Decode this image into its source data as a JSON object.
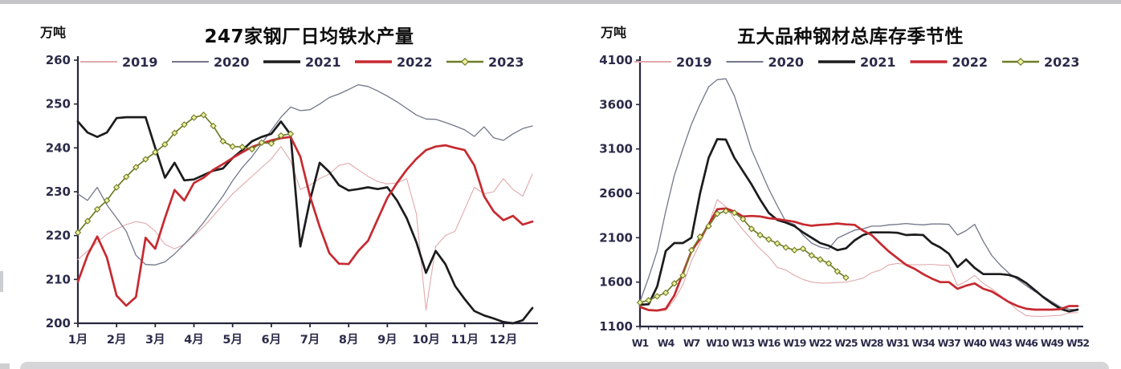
{
  "page": {
    "top_strip_color": "#c5c5c7",
    "bottom_bar_color": "#d6d6d9",
    "background": "#ffffff"
  },
  "chart_data": [
    {
      "type": "line",
      "title": "247家钢厂日均铁水产量",
      "unit": "万吨",
      "ylim": [
        200,
        260
      ],
      "y_ticks": [
        200,
        210,
        220,
        230,
        240,
        250,
        260
      ],
      "x_type": "month",
      "x_labels": [
        "1月",
        "2月",
        "3月",
        "4月",
        "5月",
        "6月",
        "7月",
        "8月",
        "9月",
        "10月",
        "11月",
        "12月"
      ],
      "weeks": 48,
      "grid": false,
      "legend_position": "top",
      "series": [
        {
          "name": "2019",
          "color": "#e2a9ad",
          "width": 1.1,
          "marker": false,
          "values": [
            214.5,
            216.5,
            218.5,
            220.3,
            221.5,
            222.5,
            223.2,
            222.8,
            221,
            218,
            217,
            218,
            220,
            222,
            224.5,
            227,
            229.5,
            231.5,
            233.5,
            235.5,
            237.5,
            240.3,
            237,
            230.5,
            231.5,
            233,
            234,
            236,
            236.5,
            235,
            233.5,
            232.3,
            231.8,
            232,
            233,
            225,
            203,
            217.5,
            220,
            221,
            226,
            231,
            229.5,
            230,
            233,
            230.5,
            229,
            234
          ]
        },
        {
          "name": "2020",
          "color": "#72778a",
          "width": 1.3,
          "marker": false,
          "values": [
            229.5,
            228,
            231,
            227,
            224,
            221,
            215.5,
            213.4,
            213.3,
            214,
            215.8,
            218,
            220.3,
            223,
            226,
            229,
            232.5,
            235.5,
            238,
            241,
            244,
            247,
            249.3,
            248.5,
            248.7,
            250,
            251.5,
            252.3,
            253.3,
            254.4,
            254,
            253,
            251.8,
            250.5,
            249,
            247.5,
            246.6,
            246.5,
            245.8,
            245,
            244.1,
            242.6,
            244.8,
            242.3,
            241.7,
            243.2,
            244.4,
            245
          ]
        },
        {
          "name": "2021",
          "color": "#1c1c1e",
          "width": 2.7,
          "marker": false,
          "values": [
            246,
            243.5,
            242.5,
            243.5,
            246.8,
            247,
            247,
            247,
            240,
            233.2,
            236.6,
            232.6,
            232.8,
            233.8,
            234.8,
            235.3,
            237.7,
            239.5,
            241.5,
            242.5,
            243.2,
            246,
            243,
            217.5,
            228,
            236.6,
            234.5,
            231.5,
            230.3,
            230.6,
            231,
            230.6,
            231,
            228,
            224,
            218.5,
            211.5,
            216.5,
            213.5,
            208.5,
            205.5,
            202.8,
            201.8,
            201.1,
            200.3,
            200,
            200.7,
            203.5
          ]
        },
        {
          "name": "2022",
          "color": "#c62a30",
          "width": 2.7,
          "marker": false,
          "values": [
            209.5,
            215.5,
            219.8,
            215,
            206.3,
            204,
            206,
            219.5,
            217,
            224,
            230.4,
            228,
            232,
            233.2,
            235,
            236.3,
            237.7,
            239,
            240.2,
            241,
            241.7,
            242.2,
            242.5,
            238,
            229,
            222,
            216,
            213.6,
            213.5,
            216.5,
            218.8,
            223.7,
            228.6,
            232,
            235,
            237.5,
            239.5,
            240.3,
            240.6,
            240,
            239.5,
            236,
            229,
            225.5,
            223.5,
            224.5,
            222.5,
            223.2
          ]
        },
        {
          "name": "2023",
          "color": "#6f7c26",
          "width": 1.7,
          "marker": true,
          "marker_fill": "#eff0a0",
          "values": [
            220.7,
            223.3,
            226,
            228,
            231,
            233.4,
            235.6,
            237.4,
            239,
            240.8,
            243.4,
            245.3,
            246.9,
            247.5,
            245,
            241.5,
            240.3,
            240.2,
            239.7,
            241.2,
            241,
            242.8,
            243.2
          ]
        }
      ]
    },
    {
      "type": "line",
      "title": "五大品种钢材总库存季节性",
      "unit": "万吨",
      "ylim": [
        1100,
        4100
      ],
      "y_ticks": [
        1100,
        1600,
        2100,
        2600,
        3100,
        3600,
        4100
      ],
      "x_type": "week",
      "x_labels": [
        "W1",
        "W4",
        "W7",
        "W10",
        "W13",
        "W16",
        "W19",
        "W22",
        "W25",
        "W28",
        "W31",
        "W34",
        "W37",
        "W40",
        "W43",
        "W46",
        "W49",
        "W52"
      ],
      "x_label_weeks": [
        1,
        4,
        7,
        10,
        13,
        16,
        19,
        22,
        25,
        28,
        31,
        34,
        37,
        40,
        43,
        46,
        49,
        52
      ],
      "weeks": 52,
      "grid": false,
      "legend_position": "top",
      "series": [
        {
          "name": "2019",
          "color": "#e2a9ad",
          "width": 1.1,
          "marker": false,
          "values": [
            1335,
            1290,
            1272,
            1280,
            1400,
            1570,
            1840,
            2040,
            2250,
            2530,
            2450,
            2310,
            2190,
            2080,
            1975,
            1885,
            1765,
            1735,
            1675,
            1630,
            1600,
            1590,
            1590,
            1595,
            1600,
            1620,
            1645,
            1705,
            1735,
            1795,
            1810,
            1800,
            1795,
            1795,
            1800,
            1790,
            1790,
            1560,
            1610,
            1675,
            1585,
            1524,
            1449,
            1373,
            1283,
            1223,
            1215,
            1215,
            1220,
            1225,
            1253,
            1255
          ]
        },
        {
          "name": "2020",
          "color": "#72778a",
          "width": 1.3,
          "marker": false,
          "values": [
            1380,
            1650,
            1950,
            2400,
            2800,
            3100,
            3380,
            3600,
            3800,
            3880,
            3890,
            3700,
            3400,
            3090,
            2870,
            2650,
            2460,
            2280,
            2250,
            2130,
            2040,
            1995,
            1975,
            2095,
            2140,
            2185,
            2200,
            2230,
            2230,
            2245,
            2250,
            2260,
            2250,
            2245,
            2255,
            2255,
            2250,
            2130,
            2180,
            2250,
            2060,
            1900,
            1790,
            1700,
            1630,
            1560,
            1495,
            1440,
            1380,
            1320,
            1295,
            1285
          ]
        },
        {
          "name": "2021",
          "color": "#1c1c1e",
          "width": 2.7,
          "marker": false,
          "values": [
            1345,
            1350,
            1550,
            1950,
            2040,
            2040,
            2100,
            2600,
            3000,
            3210,
            3205,
            3000,
            2850,
            2700,
            2530,
            2380,
            2300,
            2270,
            2230,
            2160,
            2100,
            2040,
            2010,
            1960,
            1980,
            2070,
            2130,
            2160,
            2160,
            2160,
            2155,
            2130,
            2135,
            2130,
            2040,
            1990,
            1920,
            1770,
            1855,
            1760,
            1690,
            1690,
            1690,
            1680,
            1650,
            1590,
            1510,
            1430,
            1360,
            1300,
            1270,
            1290
          ]
        },
        {
          "name": "2022",
          "color": "#c62a30",
          "width": 2.7,
          "marker": false,
          "values": [
            1320,
            1285,
            1280,
            1300,
            1450,
            1700,
            1950,
            2085,
            2250,
            2420,
            2430,
            2395,
            2340,
            2345,
            2340,
            2320,
            2310,
            2295,
            2280,
            2250,
            2235,
            2245,
            2250,
            2260,
            2250,
            2245,
            2180,
            2130,
            2035,
            1945,
            1870,
            1795,
            1750,
            1690,
            1640,
            1600,
            1600,
            1525,
            1560,
            1585,
            1525,
            1495,
            1435,
            1375,
            1330,
            1300,
            1290,
            1290,
            1290,
            1295,
            1330,
            1330
          ]
        },
        {
          "name": "2023",
          "color": "#6f7c26",
          "width": 1.7,
          "marker": true,
          "marker_fill": "#eff0a0",
          "values": [
            1370,
            1395,
            1440,
            1480,
            1585,
            1675,
            1960,
            2110,
            2230,
            2370,
            2400,
            2380,
            2310,
            2200,
            2130,
            2080,
            2035,
            1990,
            1960,
            1975,
            1900,
            1855,
            1810,
            1720,
            1650
          ]
        }
      ]
    }
  ]
}
